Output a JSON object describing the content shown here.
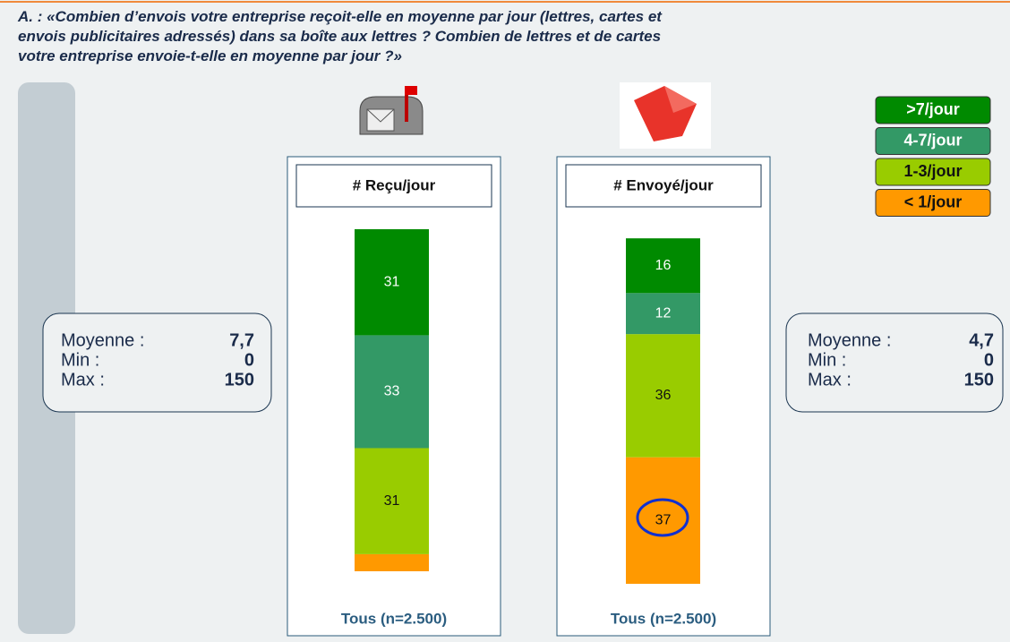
{
  "title": [
    "A. : «Combien d’envois votre entreprise reçoit-elle en moyenne par jour (lettres, cartes et",
    "envois publicitaires adressés) dans sa boîte aux lettres ? Combien de lettres et de cartes",
    "votre entreprise envoie-t-elle en moyenne par jour ?»"
  ],
  "chart_data": {
    "type": "stacked_bar",
    "categories": [
      "# Reçu/jour",
      "# Envoyé/jour"
    ],
    "bar_notes": [
      "Tous (n=2.500)",
      "Tous (n=2.500)"
    ],
    "series": [
      {
        "name": ">7/jour",
        "color": "#008a00",
        "values": [
          31,
          16
        ]
      },
      {
        "name": "4-7/jour",
        "color": "#339966",
        "values": [
          33,
          12
        ]
      },
      {
        "name": "1-3/jour",
        "color": "#99cc00",
        "values": [
          31,
          36
        ]
      },
      {
        "name": "< 1/jour",
        "color": "#ff9900",
        "values": [
          5,
          37
        ]
      }
    ]
  },
  "stats": [
    {
      "labels": [
        "Moyenne :",
        "Min :",
        "Max :"
      ],
      "values": [
        "7,7",
        "0",
        "150"
      ]
    },
    {
      "labels": [
        "Moyenne :",
        "Min :",
        "Max :"
      ],
      "values": [
        "4,7",
        "0",
        "150"
      ]
    }
  ]
}
